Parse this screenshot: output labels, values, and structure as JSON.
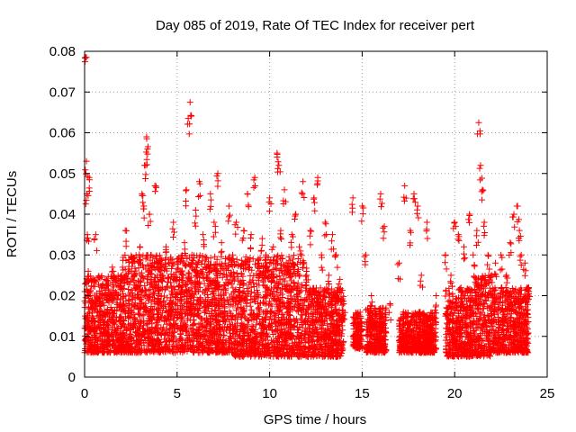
{
  "chart_data": {
    "type": "scatter",
    "title": "Day 085 of 2019, Rate Of TEC Index for receiver pert",
    "xlabel": "GPS time / hours",
    "ylabel": "ROTI / TECUs",
    "xlim": [
      0,
      25
    ],
    "ylim": [
      0,
      0.08
    ],
    "x_ticks": [
      0,
      5,
      10,
      15,
      20,
      25
    ],
    "x_tick_labels": [
      "0",
      "5",
      "10",
      "15",
      "20",
      "25"
    ],
    "y_ticks": [
      0,
      0.01,
      0.02,
      0.03,
      0.04,
      0.05,
      0.06,
      0.07,
      0.08
    ],
    "y_tick_labels": [
      "0",
      "0.01",
      "0.02",
      "0.03",
      "0.04",
      "0.05",
      "0.06",
      "0.07",
      "0.08"
    ],
    "grid": true,
    "marker": "plus",
    "color": "#ff0000",
    "series": [
      {
        "x": [
          0.05,
          0.1,
          0.12,
          0.15,
          0.2,
          0.25,
          0.3,
          0.4,
          0.5,
          0.6,
          0.8,
          1.0,
          1.2,
          1.5,
          1.8,
          2.0,
          2.2,
          2.4,
          2.6,
          2.8,
          3.0,
          3.1,
          3.2,
          3.3,
          3.35,
          3.4,
          3.5,
          3.6,
          3.8,
          4.0,
          4.2,
          4.4,
          4.6,
          4.8,
          5.0,
          5.2,
          5.4,
          5.5,
          5.6,
          5.7,
          5.8,
          6.0,
          6.2,
          6.4,
          6.6,
          6.8,
          7.0,
          7.2,
          7.4,
          7.6,
          7.8,
          8.0,
          8.2,
          8.4,
          8.6,
          8.8,
          9.0,
          9.2,
          9.4,
          9.6,
          9.8,
          10.0,
          10.2,
          10.4,
          10.5,
          10.6,
          10.8,
          11.0,
          11.2,
          11.4,
          11.6,
          11.8,
          12.0,
          12.2,
          12.4,
          12.6,
          12.8,
          13.0,
          13.2,
          13.4,
          13.6,
          13.8,
          14.0,
          14.5,
          15.0,
          15.2,
          15.5,
          15.8,
          16.0,
          16.2,
          16.5,
          17.0,
          17.3,
          17.6,
          17.8,
          18.0,
          18.2,
          18.5,
          19.0,
          19.5,
          19.8,
          20.0,
          20.2,
          20.5,
          20.8,
          21.0,
          21.2,
          21.3,
          21.4,
          21.5,
          21.6,
          21.8,
          22.0,
          22.2,
          22.5,
          22.8,
          23.0,
          23.2,
          23.4,
          23.5,
          23.6,
          23.8,
          24.0
        ],
        "y": [
          0.0785,
          0.053,
          0.045,
          0.035,
          0.026,
          0.049,
          0.02,
          0.015,
          0.012,
          0.035,
          0.018,
          0.022,
          0.016,
          0.027,
          0.02,
          0.025,
          0.036,
          0.018,
          0.028,
          0.022,
          0.032,
          0.045,
          0.042,
          0.052,
          0.059,
          0.056,
          0.04,
          0.03,
          0.047,
          0.02,
          0.025,
          0.032,
          0.018,
          0.038,
          0.029,
          0.022,
          0.033,
          0.046,
          0.0635,
          0.0675,
          0.03,
          0.041,
          0.048,
          0.035,
          0.025,
          0.045,
          0.038,
          0.05,
          0.033,
          0.028,
          0.042,
          0.03,
          0.038,
          0.022,
          0.036,
          0.045,
          0.035,
          0.049,
          0.028,
          0.034,
          0.03,
          0.044,
          0.032,
          0.055,
          0.052,
          0.036,
          0.046,
          0.028,
          0.035,
          0.04,
          0.032,
          0.048,
          0.025,
          0.036,
          0.044,
          0.049,
          0.03,
          0.038,
          0.025,
          0.035,
          0.03,
          0.024,
          0.018,
          0.044,
          0.042,
          0.03,
          0.02,
          0.015,
          0.045,
          0.037,
          0.018,
          0.028,
          0.047,
          0.036,
          0.045,
          0.042,
          0.025,
          0.038,
          0.02,
          0.03,
          0.025,
          0.038,
          0.035,
          0.032,
          0.04,
          0.03,
          0.036,
          0.0625,
          0.052,
          0.046,
          0.038,
          0.03,
          0.025,
          0.028,
          0.03,
          0.025,
          0.033,
          0.04,
          0.042,
          0.036,
          0.03,
          0.028,
          0.022
        ]
      }
    ],
    "dense_band": [
      {
        "x": [
          0,
          2
        ],
        "y": [
          0.006,
          0.025
        ]
      },
      {
        "x": [
          2,
          5
        ],
        "y": [
          0.006,
          0.03
        ]
      },
      {
        "x": [
          5,
          8
        ],
        "y": [
          0.006,
          0.03
        ]
      },
      {
        "x": [
          8,
          12
        ],
        "y": [
          0.005,
          0.03
        ]
      },
      {
        "x": [
          12,
          14
        ],
        "y": [
          0.005,
          0.022
        ]
      },
      {
        "x": [
          14.5,
          15
        ],
        "y": [
          0.007,
          0.016
        ]
      },
      {
        "x": [
          15.2,
          16.3
        ],
        "y": [
          0.006,
          0.017
        ]
      },
      {
        "x": [
          17,
          19
        ],
        "y": [
          0.006,
          0.016
        ]
      },
      {
        "x": [
          19.5,
          21
        ],
        "y": [
          0.005,
          0.022
        ]
      },
      {
        "x": [
          21,
          22
        ],
        "y": [
          0.005,
          0.025
        ]
      },
      {
        "x": [
          22,
          24
        ],
        "y": [
          0.006,
          0.022
        ]
      }
    ]
  }
}
